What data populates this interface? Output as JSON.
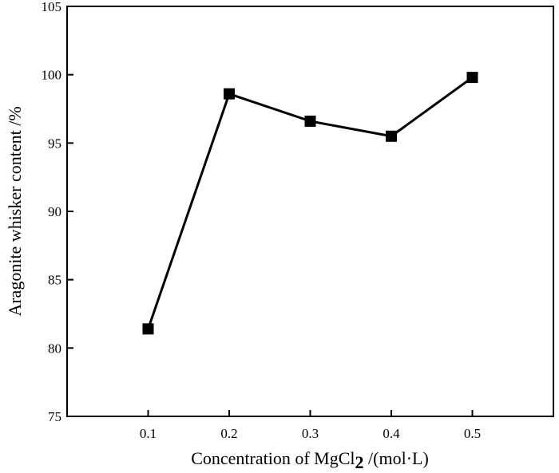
{
  "chart_data": {
    "type": "line",
    "x": [
      0.1,
      0.2,
      0.3,
      0.4,
      0.5
    ],
    "series": [
      {
        "values": [
          81.4,
          98.6,
          96.6,
          95.5,
          99.8
        ],
        "color": "#000000",
        "marker": "square"
      }
    ],
    "xticks": [
      "0.1",
      "0.2",
      "0.3",
      "0.4",
      "0.5"
    ],
    "yticks": [
      "75",
      "80",
      "85",
      "90",
      "95",
      "100",
      "105"
    ],
    "xlim": [
      0.0,
      0.6
    ],
    "ylim": [
      75,
      105
    ],
    "xlabel_main": "Concentration of MgCl",
    "xlabel_sub": "2",
    "xlabel_tail": " /(mol·L)",
    "ylabel": "Aragonite whisker content /%",
    "grid": false,
    "legend": false
  }
}
